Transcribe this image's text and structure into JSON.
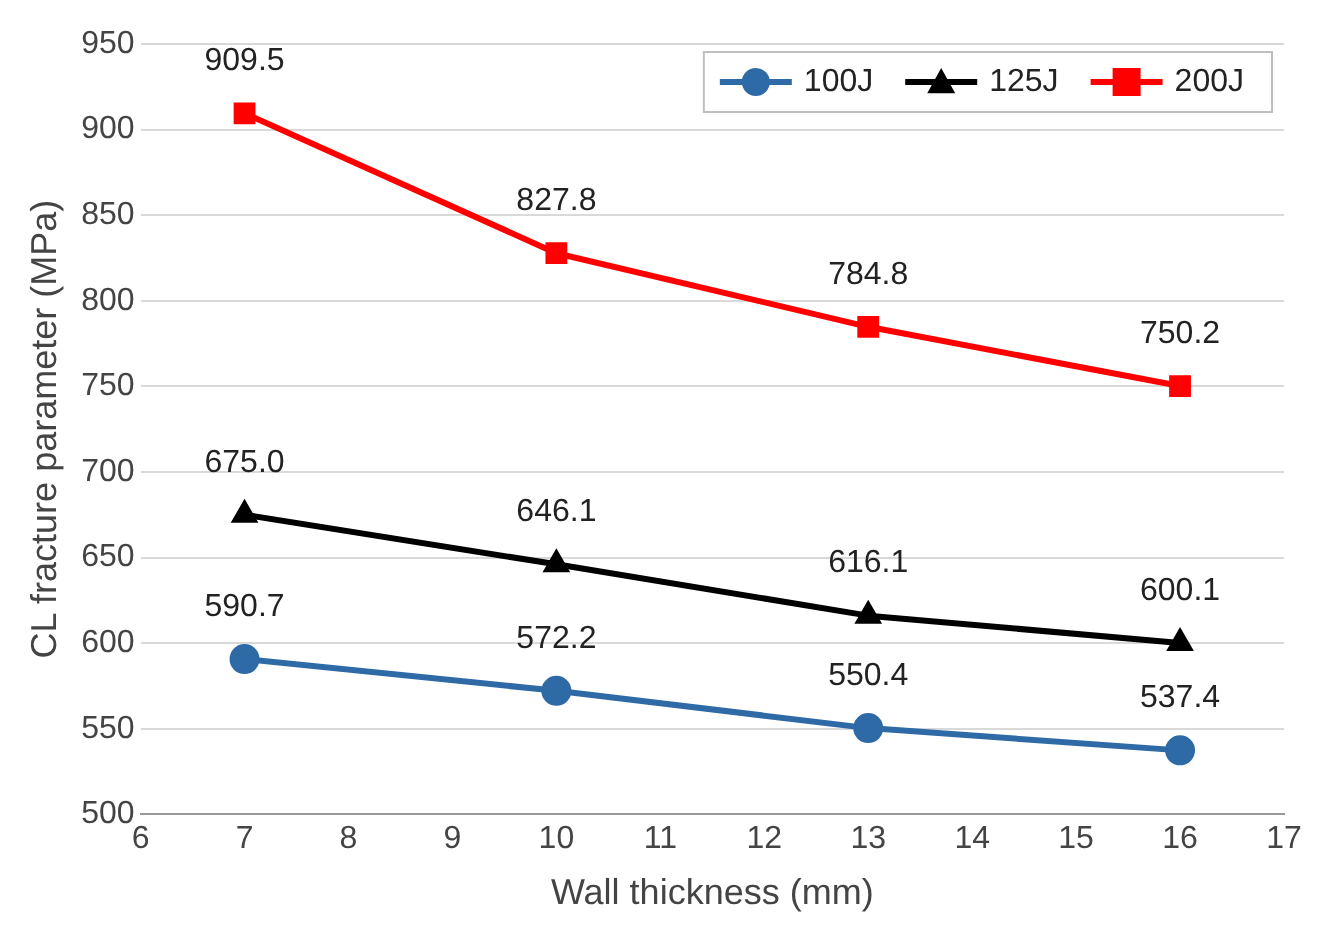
{
  "chart_data": {
    "type": "line",
    "xlabel": "Wall thickness (mm)",
    "ylabel": "CL fracture parameter (MPa)",
    "x": [
      7,
      10,
      13,
      16
    ],
    "series": [
      {
        "name": "100J",
        "color": "#2e6aa5",
        "marker": "circle",
        "values": [
          590.7,
          572.2,
          550.4,
          537.4
        ],
        "value_labels": [
          "590.7",
          "572.2",
          "550.4",
          "537.4"
        ]
      },
      {
        "name": "125J",
        "color": "#000000",
        "marker": "triangle",
        "values": [
          675.0,
          646.1,
          616.1,
          600.1
        ],
        "value_labels": [
          "675.0",
          "646.1",
          "616.1",
          "600.1"
        ]
      },
      {
        "name": "200J",
        "color": "#ff0000",
        "marker": "square",
        "values": [
          909.5,
          827.8,
          784.8,
          750.2
        ],
        "value_labels": [
          "909.5",
          "827.8",
          "784.8",
          "750.2"
        ]
      }
    ],
    "xlim": [
      6,
      17
    ],
    "xticks": [
      6,
      7,
      8,
      9,
      10,
      11,
      12,
      13,
      14,
      15,
      16,
      17
    ],
    "ylim": [
      500,
      950
    ],
    "yticks": [
      500,
      550,
      600,
      650,
      700,
      750,
      800,
      850,
      900,
      950
    ],
    "grid": "y",
    "legend": "top right",
    "line_style": "solid"
  }
}
